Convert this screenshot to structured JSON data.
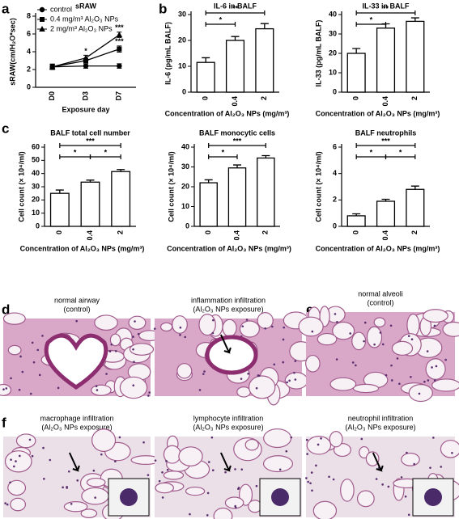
{
  "panel_labels": [
    "a",
    "b",
    "c",
    "d",
    "e",
    "f"
  ],
  "chart_data": [
    {
      "type": "line",
      "title": "sRAW",
      "y_label": "sRAW(cm/H₂O*sec)",
      "x_label": "Exposure day",
      "categories": [
        "D0",
        "D3",
        "D7"
      ],
      "ylim": [
        0,
        8
      ],
      "yticks": [
        0,
        2,
        4,
        6,
        8
      ],
      "legend": "upper left",
      "series": [
        {
          "name": "control",
          "color": "#000000",
          "marker": "circle",
          "values": [
            2.3,
            2.4,
            2.4
          ],
          "errors": [
            0.3,
            0.25,
            0.25
          ]
        },
        {
          "name": "0.4 mg/m³ Al₂O₃ NPs",
          "color": "#000000",
          "marker": "square",
          "values": [
            2.3,
            3.0,
            4.3
          ],
          "errors": [
            0.3,
            0.25,
            0.35
          ]
        },
        {
          "name": "2 mg/m³ Al₂O₃ NPs",
          "color": "#000000",
          "marker": "triangle",
          "values": [
            2.3,
            3.3,
            5.9
          ],
          "errors": [
            0.3,
            0.3,
            0.3
          ]
        }
      ],
      "annotations": [
        {
          "text": "*",
          "at": "D3",
          "over": "2 mg/m³ Al₂O₃ NPs"
        },
        {
          "text": "***",
          "at": "D7",
          "over": "2 mg/m³ Al₂O₃ NPs"
        },
        {
          "text": "***",
          "at": "D7",
          "over": "0.4 mg/m³ Al₂O₃ NPs"
        }
      ]
    },
    {
      "type": "bar",
      "title": "IL-6 in  BALF",
      "y_label": "IL-6 (pg/mL BALF)",
      "x_label": "Concentration of Al₂O₃ NPs (mg/m³)",
      "categories": [
        "0",
        "0.4",
        "2"
      ],
      "values": [
        11.5,
        20,
        24.5
      ],
      "errors": [
        1.8,
        1.5,
        2
      ],
      "color": "#ffffff",
      "ylim": [
        0,
        30
      ],
      "yticks": [
        0,
        10,
        20,
        30
      ],
      "brackets": [
        {
          "label": "*",
          "between": [
            "0",
            "0.4"
          ]
        },
        {
          "label": "**",
          "between": [
            "0",
            "2"
          ]
        }
      ]
    },
    {
      "type": "bar",
      "title": "IL-33  in  BALF",
      "y_label": "IL-33 (pg/mL BALF)",
      "x_label": "Concentration of Al₂O₃ NPs (mg/m³)",
      "categories": [
        "0",
        "0.4",
        "2"
      ],
      "values": [
        20,
        33,
        36.5
      ],
      "errors": [
        2.5,
        2.2,
        1.8
      ],
      "color": "#ffffff",
      "ylim": [
        0,
        40
      ],
      "yticks": [
        0,
        10,
        20,
        30,
        40
      ],
      "brackets": [
        {
          "label": "*",
          "between": [
            "0",
            "0.4"
          ]
        },
        {
          "label": "**",
          "between": [
            "0",
            "2"
          ]
        }
      ]
    },
    {
      "type": "bar",
      "title": "BALF total cell number",
      "y_label": "Cell count (× 10⁴/ml)",
      "x_label": "Concentration of Al₂O₃ NPs (mg/m³)",
      "categories": [
        "0",
        "0.4",
        "2"
      ],
      "values": [
        25,
        33.5,
        41.5
      ],
      "errors": [
        2.5,
        1.5,
        1.5
      ],
      "color": "#ffffff",
      "ylim": [
        0,
        60
      ],
      "yticks": [
        0,
        10,
        20,
        30,
        40,
        50,
        60
      ],
      "brackets": [
        {
          "label": "*",
          "between": [
            "0",
            "0.4"
          ]
        },
        {
          "label": "*",
          "between": [
            "0.4",
            "2"
          ]
        },
        {
          "label": "***",
          "between": [
            "0",
            "2"
          ]
        }
      ]
    },
    {
      "type": "bar",
      "title": "BALF monocytic cells",
      "y_label": "Cell count (× 10⁴/ml)",
      "x_label": "Concentration of Al₂O₃ NPs (mg/m³)",
      "categories": [
        "0",
        "0.4",
        "2"
      ],
      "values": [
        22,
        29.5,
        34.5
      ],
      "errors": [
        1.5,
        1.5,
        1.2
      ],
      "color": "#ffffff",
      "ylim": [
        0,
        40
      ],
      "yticks": [
        0,
        10,
        20,
        30,
        40
      ],
      "brackets": [
        {
          "label": "*",
          "between": [
            "0",
            "0.4"
          ]
        },
        {
          "label": "***",
          "between": [
            "0",
            "2"
          ]
        }
      ]
    },
    {
      "type": "bar",
      "title": "BALF neutrophils",
      "y_label": "Cell count (× 10⁴/ml)",
      "x_label": "Concentration of Al₂O₃ NPs (mg/m³)",
      "categories": [
        "0",
        "0.4",
        "2"
      ],
      "values": [
        0.8,
        1.9,
        2.8
      ],
      "errors": [
        0.15,
        0.15,
        0.25
      ],
      "color": "#ffffff",
      "ylim": [
        0,
        6
      ],
      "yticks": [
        0,
        2,
        4,
        6
      ],
      "brackets": [
        {
          "label": "*",
          "between": [
            "0",
            "0.4"
          ]
        },
        {
          "label": "*",
          "between": [
            "0.4",
            "2"
          ]
        },
        {
          "label": "***",
          "between": [
            "0",
            "2"
          ]
        }
      ]
    }
  ],
  "micrographs": [
    {
      "caption": "normal airway",
      "subcaption": "(control)"
    },
    {
      "caption": "inflammation infiltration",
      "subcaption": "(Al₂O₃ NPs exposure)"
    },
    {
      "caption": "normal alveoli",
      "subcaption": "(control)"
    },
    {
      "caption": "macrophage infiltration",
      "subcaption": "(Al₂O₃ NPs exposure)"
    },
    {
      "caption": "lymphocyte infiltration",
      "subcaption": "(Al₂O₃ NPs exposure)"
    },
    {
      "caption": "neutrophil infiltration",
      "subcaption": "(Al₂O₃ NPs exposure)"
    }
  ]
}
